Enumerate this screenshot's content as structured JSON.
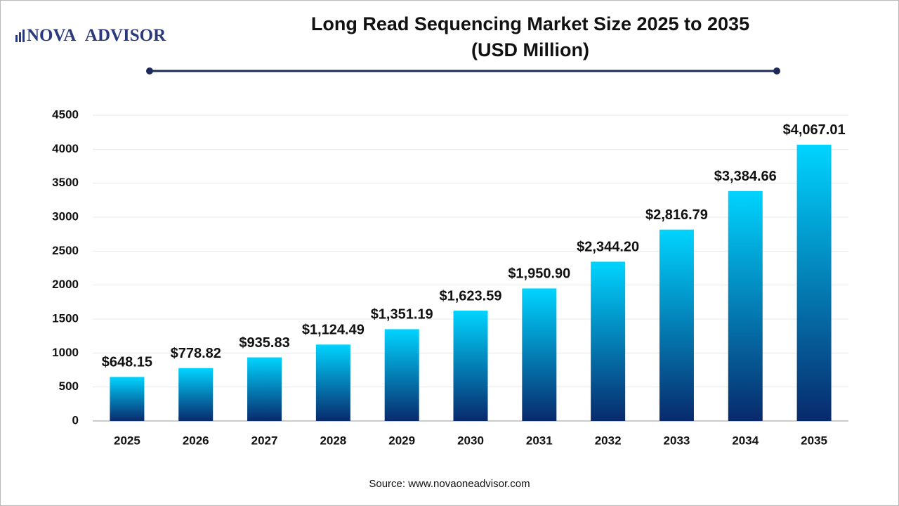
{
  "logo": {
    "left": "NOVA",
    "mark": "1",
    "right": "ADVISOR"
  },
  "chart_data": {
    "type": "bar",
    "title": "Long Read Sequencing Market Size 2025 to 2035",
    "subtitle": "(USD Million)",
    "categories": [
      "2025",
      "2026",
      "2027",
      "2028",
      "2029",
      "2030",
      "2031",
      "2032",
      "2033",
      "2034",
      "2035"
    ],
    "values": [
      648.15,
      778.82,
      935.83,
      1124.49,
      1351.19,
      1623.59,
      1950.9,
      2344.2,
      2816.79,
      3384.66,
      4067.01
    ],
    "value_labels": [
      "$648.15",
      "$778.82",
      "$935.83",
      "$1,124.49",
      "$1,351.19",
      "$1,623.59",
      "$1,950.90",
      "$2,344.20",
      "$2,816.79",
      "$3,384.66",
      "$4,067.01"
    ],
    "color": [
      "#00d4ff",
      "#082a6c"
    ],
    "ylim": [
      0,
      4500
    ],
    "yticks": [
      0,
      500,
      1000,
      1500,
      2000,
      2500,
      3000,
      3500,
      4000,
      4500
    ],
    "grid": true,
    "source": "Source: www.novaoneadvisor.com"
  }
}
